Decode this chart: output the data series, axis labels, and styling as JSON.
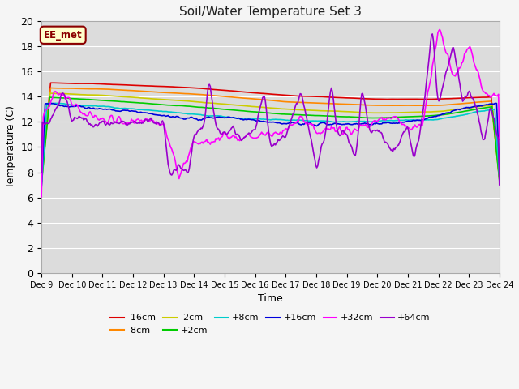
{
  "title": "Soil/Water Temperature Set 3",
  "xlabel": "Time",
  "ylabel": "Temperature (C)",
  "ylim": [
    0,
    20
  ],
  "xlim": [
    0,
    15
  ],
  "background_color": "#dcdcdc",
  "fig_bg": "#f5f5f5",
  "annotation_text": "EE_met",
  "annotation_bg": "#ffffcc",
  "annotation_border": "#8b0000",
  "series": {
    "-16cm": {
      "color": "#dd0000",
      "lw": 1.2
    },
    "-8cm": {
      "color": "#ff8800",
      "lw": 1.2
    },
    "-2cm": {
      "color": "#cccc00",
      "lw": 1.2
    },
    "+2cm": {
      "color": "#00cc00",
      "lw": 1.2
    },
    "+8cm": {
      "color": "#00cccc",
      "lw": 1.2
    },
    "+16cm": {
      "color": "#0000dd",
      "lw": 1.2
    },
    "+32cm": {
      "color": "#ff00ff",
      "lw": 1.2
    },
    "+64cm": {
      "color": "#9900cc",
      "lw": 1.2
    }
  },
  "x_tick_labels": [
    "Dec 9",
    "Dec 10",
    "Dec 11",
    "Dec 12",
    "Dec 13",
    "Dec 14",
    "Dec 15",
    "Dec 16",
    "Dec 17",
    "Dec 18",
    "Dec 19",
    "Dec 20",
    "Dec 21",
    "Dec 22",
    "Dec 23",
    "Dec 24"
  ],
  "grid_color": "#ffffff",
  "yticks": [
    0,
    2,
    4,
    6,
    8,
    10,
    12,
    14,
    16,
    18,
    20
  ]
}
